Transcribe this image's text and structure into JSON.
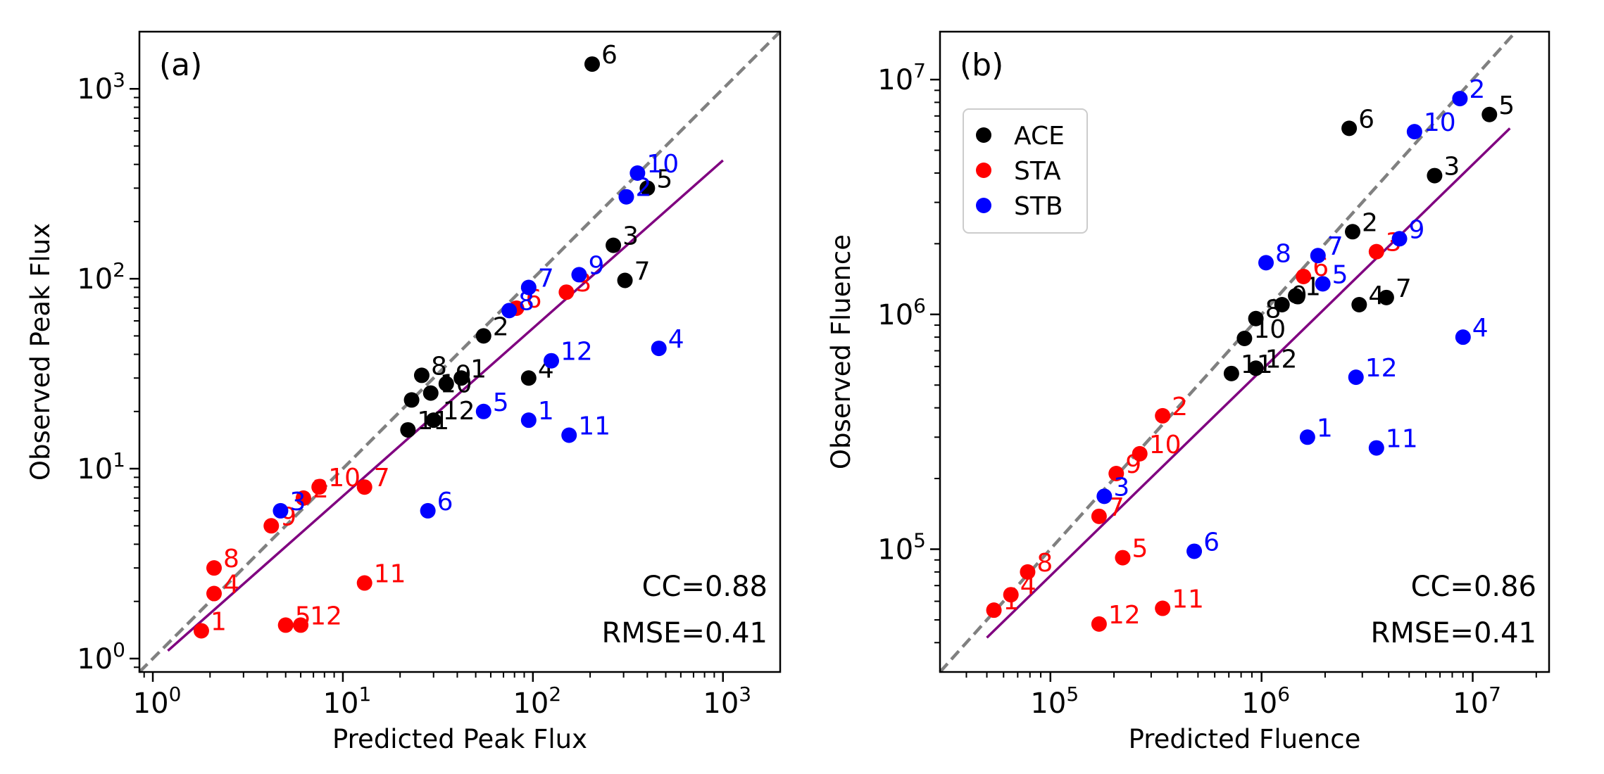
{
  "colors": {
    "ACE": "#000000",
    "STA": "#ff0000",
    "STB": "#0000ff",
    "fit": "#800080",
    "identity": "#808080"
  },
  "legend": {
    "location": "upper-left",
    "entries": [
      {
        "label": "ACE",
        "color_key": "ACE"
      },
      {
        "label": "STA",
        "color_key": "STA"
      },
      {
        "label": "STB",
        "color_key": "STB"
      }
    ]
  },
  "chart_data": [
    {
      "type": "scatter",
      "panel_label": "(a)",
      "xlabel": "Predicted Peak Flux",
      "ylabel": "Observed Peak Flux",
      "xscale": "log",
      "yscale": "log",
      "xlim": [
        0.85,
        2000
      ],
      "ylim": [
        0.85,
        2000
      ],
      "xticks": [
        {
          "value": 1,
          "label": "10^0"
        },
        {
          "value": 10,
          "label": "10^1"
        },
        {
          "value": 100,
          "label": "10^2"
        },
        {
          "value": 1000,
          "label": "10^3"
        }
      ],
      "yticks": [
        {
          "value": 1,
          "label": "10^0"
        },
        {
          "value": 10,
          "label": "10^1"
        },
        {
          "value": 100,
          "label": "10^2"
        },
        {
          "value": 1000,
          "label": "10^3"
        }
      ],
      "stats": {
        "cc": "CC=0.88",
        "rmse": "RMSE=0.41"
      },
      "fit_line": {
        "x": [
          1.2,
          1000
        ],
        "y": [
          1.1,
          420
        ]
      },
      "series": [
        {
          "name": "ACE",
          "points": [
            {
              "label": "1",
              "x": 42,
              "y": 30
            },
            {
              "label": "2",
              "x": 55,
              "y": 50
            },
            {
              "label": "3",
              "x": 265,
              "y": 150
            },
            {
              "label": "4",
              "x": 95,
              "y": 30
            },
            {
              "label": "5",
              "x": 400,
              "y": 300
            },
            {
              "label": "6",
              "x": 205,
              "y": 1350
            },
            {
              "label": "7",
              "x": 305,
              "y": 98
            },
            {
              "label": "8",
              "x": 26,
              "y": 31
            },
            {
              "label": "9",
              "x": 35,
              "y": 28
            },
            {
              "label": "10",
              "x": 29,
              "y": 25
            },
            {
              "label": "11",
              "x": 22,
              "y": 16
            },
            {
              "label": "12",
              "x": 30,
              "y": 18
            },
            {
              "label": "",
              "x": 23,
              "y": 23
            }
          ]
        },
        {
          "name": "STA",
          "points": [
            {
              "label": "1",
              "x": 1.8,
              "y": 1.4
            },
            {
              "label": "2",
              "x": 6.2,
              "y": 7
            },
            {
              "label": "3",
              "x": 150,
              "y": 85
            },
            {
              "label": "4",
              "x": 2.1,
              "y": 2.2
            },
            {
              "label": "5",
              "x": 5,
              "y": 1.5
            },
            {
              "label": "6",
              "x": 82,
              "y": 70
            },
            {
              "label": "7",
              "x": 13,
              "y": 8
            },
            {
              "label": "8",
              "x": 2.1,
              "y": 3
            },
            {
              "label": "9",
              "x": 4.2,
              "y": 5
            },
            {
              "label": "10",
              "x": 7.5,
              "y": 8
            },
            {
              "label": "11",
              "x": 13,
              "y": 2.5
            },
            {
              "label": "12",
              "x": 6,
              "y": 1.5
            }
          ]
        },
        {
          "name": "STB",
          "points": [
            {
              "label": "1",
              "x": 95,
              "y": 18
            },
            {
              "label": "2",
              "x": 310,
              "y": 270
            },
            {
              "label": "3",
              "x": 4.7,
              "y": 6
            },
            {
              "label": "4",
              "x": 460,
              "y": 43
            },
            {
              "label": "5",
              "x": 55,
              "y": 20
            },
            {
              "label": "6",
              "x": 28,
              "y": 6
            },
            {
              "label": "7",
              "x": 95,
              "y": 90
            },
            {
              "label": "8",
              "x": 75,
              "y": 68
            },
            {
              "label": "9",
              "x": 175,
              "y": 105
            },
            {
              "label": "10",
              "x": 355,
              "y": 360
            },
            {
              "label": "11",
              "x": 155,
              "y": 15
            },
            {
              "label": "12",
              "x": 125,
              "y": 37
            }
          ]
        }
      ]
    },
    {
      "type": "scatter",
      "panel_label": "(b)",
      "xlabel": "Predicted Fluence",
      "ylabel": "Observed Fluence",
      "xscale": "log",
      "yscale": "log",
      "xlim": [
        30000,
        23000000
      ],
      "ylim": [
        30000,
        16000000
      ],
      "xticks": [
        {
          "value": 100000,
          "label": "10^5"
        },
        {
          "value": 1000000,
          "label": "10^6"
        },
        {
          "value": 10000000,
          "label": "10^7"
        }
      ],
      "yticks": [
        {
          "value": 100000,
          "label": "10^5"
        },
        {
          "value": 1000000,
          "label": "10^6"
        },
        {
          "value": 10000000,
          "label": "10^7"
        }
      ],
      "stats": {
        "cc": "CC=0.86",
        "rmse": "RMSE=0.41"
      },
      "fit_line": {
        "x": [
          50000,
          15000000
        ],
        "y": [
          42000,
          6200000
        ]
      },
      "series": [
        {
          "name": "ACE",
          "points": [
            {
              "label": "1",
              "x": 1450000,
              "y": 1200000
            },
            {
              "label": "2",
              "x": 2700000,
              "y": 2250000
            },
            {
              "label": "3",
              "x": 6600000,
              "y": 3900000
            },
            {
              "label": "4",
              "x": 2900000,
              "y": 1100000
            },
            {
              "label": "5",
              "x": 12000000,
              "y": 7100000
            },
            {
              "label": "6",
              "x": 2600000,
              "y": 6200000
            },
            {
              "label": "7",
              "x": 3900000,
              "y": 1180000
            },
            {
              "label": "8",
              "x": 940000,
              "y": 960000
            },
            {
              "label": "9",
              "x": 1250000,
              "y": 1100000
            },
            {
              "label": "10",
              "x": 830000,
              "y": 790000
            },
            {
              "label": "11",
              "x": 720000,
              "y": 560000
            },
            {
              "label": "12",
              "x": 940000,
              "y": 590000
            }
          ]
        },
        {
          "name": "STA",
          "points": [
            {
              "label": "1",
              "x": 54000,
              "y": 55000
            },
            {
              "label": "2",
              "x": 340000,
              "y": 370000
            },
            {
              "label": "3",
              "x": 3500000,
              "y": 1850000
            },
            {
              "label": "4",
              "x": 65000,
              "y": 64000
            },
            {
              "label": "5",
              "x": 220000,
              "y": 92000
            },
            {
              "label": "6",
              "x": 1580000,
              "y": 1450000
            },
            {
              "label": "7",
              "x": 170000,
              "y": 138000
            },
            {
              "label": "8",
              "x": 78000,
              "y": 80000
            },
            {
              "label": "9",
              "x": 205000,
              "y": 210000
            },
            {
              "label": "10",
              "x": 265000,
              "y": 255000
            },
            {
              "label": "11",
              "x": 340000,
              "y": 56000
            },
            {
              "label": "12",
              "x": 170000,
              "y": 48000
            }
          ]
        },
        {
          "name": "STB",
          "points": [
            {
              "label": "1",
              "x": 1650000,
              "y": 300000
            },
            {
              "label": "2",
              "x": 8700000,
              "y": 8300000
            },
            {
              "label": "3",
              "x": 180000,
              "y": 168000
            },
            {
              "label": "4",
              "x": 9000000,
              "y": 800000
            },
            {
              "label": "5",
              "x": 1950000,
              "y": 1350000
            },
            {
              "label": "6",
              "x": 480000,
              "y": 98000
            },
            {
              "label": "7",
              "x": 1850000,
              "y": 1780000
            },
            {
              "label": "8",
              "x": 1050000,
              "y": 1660000
            },
            {
              "label": "9",
              "x": 4500000,
              "y": 2100000
            },
            {
              "label": "10",
              "x": 5300000,
              "y": 6000000
            },
            {
              "label": "11",
              "x": 3500000,
              "y": 270000
            },
            {
              "label": "12",
              "x": 2800000,
              "y": 540000
            }
          ]
        }
      ]
    }
  ]
}
